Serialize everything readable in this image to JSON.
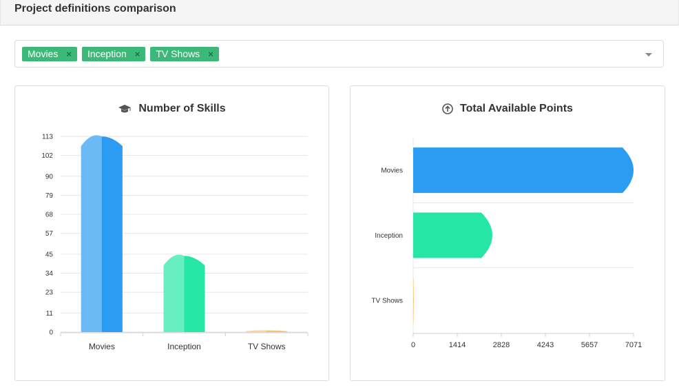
{
  "header": {
    "title": "Project definitions comparison"
  },
  "selector": {
    "tags": [
      {
        "label": "Movies",
        "remove": "×"
      },
      {
        "label": "Inception",
        "remove": "×"
      },
      {
        "label": "TV Shows",
        "remove": "×"
      }
    ]
  },
  "colors": {
    "tag_bg": "#3cb878",
    "movies": "#2b9cf2",
    "inception": "#26e6a6",
    "tv_shows": "#f7c06d"
  },
  "panels": {
    "skills": {
      "title": "Number of Skills",
      "icon": "graduation-cap-icon"
    },
    "points": {
      "title": "Total Available Points",
      "icon": "arrow-up-circle-icon"
    }
  },
  "chart_data": [
    {
      "type": "bar",
      "title": "Number of Skills",
      "orientation": "vertical",
      "categories": [
        "Movies",
        "Inception",
        "TV Shows"
      ],
      "values": [
        113,
        44,
        1
      ],
      "yticks": [
        "0",
        "11",
        "23",
        "34",
        "45",
        "57",
        "68",
        "79",
        "90",
        "102",
        "113"
      ],
      "ylim": [
        0,
        113
      ],
      "grid": true,
      "colors": [
        "#2b9cf2",
        "#26e6a6",
        "#f7c06d"
      ]
    },
    {
      "type": "bar",
      "title": "Total Available Points",
      "orientation": "horizontal",
      "categories": [
        "Movies",
        "Inception",
        "TV Shows"
      ],
      "values": [
        7071,
        2540,
        20
      ],
      "xticks": [
        "0",
        "1414",
        "2828",
        "4243",
        "5657",
        "7071"
      ],
      "xlim": [
        0,
        7071
      ],
      "grid": true,
      "colors": [
        "#2b9cf2",
        "#26e6a6",
        "#f7c06d"
      ]
    }
  ]
}
